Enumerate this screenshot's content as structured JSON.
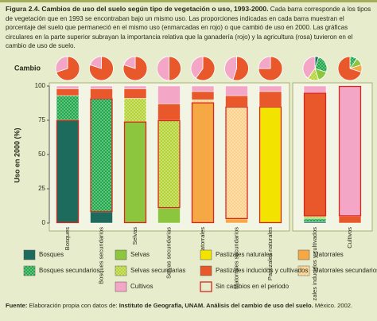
{
  "caption": {
    "title": "Figura 2.4. Cambios de uso del suelo según tipo de vegetación o uso, 1993-2000.",
    "text": "Cada barra corresponde a los tipos de vegetación que en 1993 se encontraban bajo un mismo uso. Las proporciones indicadas en cada barra muestran el porcentaje del suelo que permaneció en el mismo uso (enmarcadas en rojo) o que cambió de uso en 2000. Las gráficas circulares en la parte superior subrayan la importancia relativa que la ganadería (rojo) y la agricultura (rosa) tuvieron en el cambio de uso de suelo."
  },
  "chart_data": {
    "type": "stacked_bar",
    "pie_label": "Cambio",
    "y_label": "Uso en 2000 (%)",
    "categories": [
      "Bosques",
      "Bosques secundarios",
      "Selvas",
      "Selvas secundarias",
      "Matorrales",
      "Matorrales secundarios",
      "Pastizales naturales",
      "Pastizales inducidos y cultivados",
      "Cultivos"
    ],
    "ylim": [
      0,
      100
    ],
    "yticks": [
      0,
      25,
      50,
      75,
      100
    ],
    "series": [
      {
        "name": "Bosques",
        "color": "#1d6b5c",
        "dotted": false,
        "values": [
          75,
          8,
          0,
          0,
          0,
          0,
          0,
          1,
          0
        ],
        "change": [
          0,
          0,
          0,
          0,
          0,
          0,
          0,
          5,
          0
        ]
      },
      {
        "name": "Bosques secundarios",
        "color": "#21a84a",
        "dotted": true,
        "values": [
          18,
          83,
          0,
          0,
          0,
          0,
          0,
          2,
          0
        ],
        "change": [
          0,
          0,
          0,
          0,
          0,
          0,
          0,
          25,
          10
        ]
      },
      {
        "name": "Selvas",
        "color": "#8cc63f",
        "dotted": false,
        "values": [
          0,
          0,
          74,
          11,
          0,
          0,
          0,
          1,
          0
        ],
        "change": [
          0,
          0,
          0,
          0,
          0,
          0,
          0,
          15,
          10
        ]
      },
      {
        "name": "Selvas secundarias",
        "color": "#b5d334",
        "dotted": true,
        "values": [
          0,
          0,
          17,
          64,
          0,
          0,
          0,
          1,
          0
        ],
        "change": [
          0,
          0,
          0,
          0,
          0,
          0,
          0,
          15,
          0
        ]
      },
      {
        "name": "Matorrales",
        "color": "#f6a844",
        "dotted": false,
        "values": [
          0,
          0,
          0,
          0,
          88,
          3,
          0,
          0,
          0
        ],
        "change": [
          0,
          0,
          0,
          0,
          0,
          0,
          0,
          0,
          10
        ]
      },
      {
        "name": "Matorrales secundarios",
        "color": "#fbd089",
        "dotted": true,
        "values": [
          0,
          0,
          0,
          0,
          2,
          82,
          0,
          0,
          0
        ],
        "change": [
          0,
          0,
          0,
          0,
          0,
          0,
          0,
          0,
          0
        ]
      },
      {
        "name": "Pastizales naturales",
        "color": "#f2e400",
        "dotted": false,
        "values": [
          0,
          0,
          0,
          0,
          0,
          0,
          85,
          0,
          0
        ],
        "change": [
          0,
          0,
          0,
          0,
          0,
          0,
          0,
          0,
          0
        ]
      },
      {
        "name": "Pastizales inducidos y cultivados",
        "color": "#e8582a",
        "dotted": false,
        "values": [
          5,
          7,
          7,
          12,
          6,
          8,
          11,
          90,
          5
        ],
        "change": [
          70,
          80,
          80,
          50,
          60,
          55,
          75,
          0,
          70
        ]
      },
      {
        "name": "Cultivos",
        "color": "#f3a6c6",
        "dotted": false,
        "values": [
          2,
          2,
          2,
          13,
          4,
          7,
          4,
          5,
          95
        ],
        "change": [
          30,
          20,
          20,
          50,
          40,
          45,
          25,
          40,
          0
        ]
      }
    ],
    "unchanged_label": "Sin cambios en el periodo"
  },
  "footer": {
    "lead": "Fuente:",
    "pre": "Elaboración propia con datos de:",
    "source": "Instituto de Geografía, UNAM. Análisis del cambio de uso del suelo.",
    "post": "México. 2002."
  }
}
